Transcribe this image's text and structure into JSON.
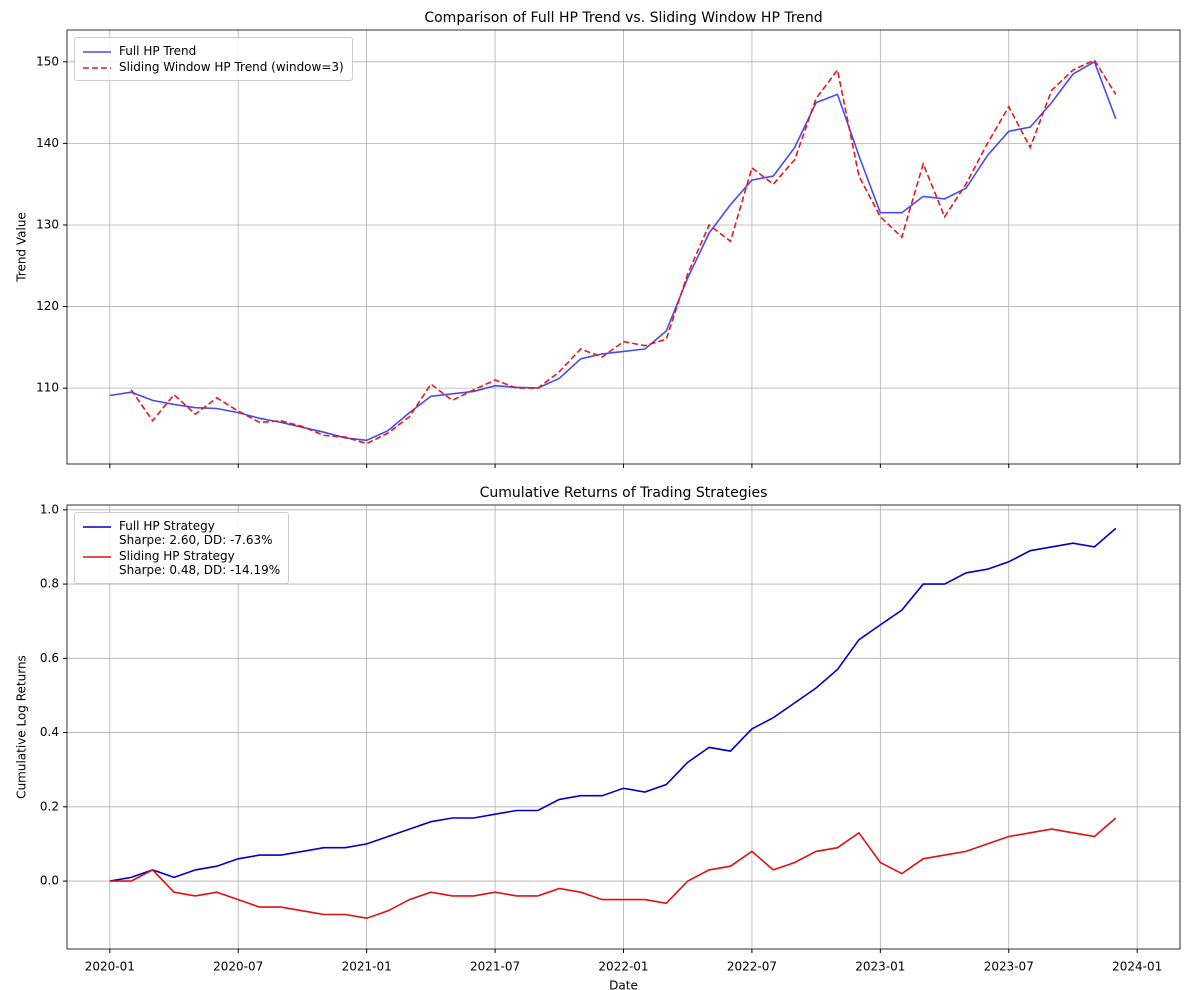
{
  "chart_data": [
    {
      "type": "line",
      "title": "Comparison of Full HP Trend vs. Sliding Window HP Trend",
      "y_label": "Trend Value",
      "x": [
        "2020-01",
        "2020-02",
        "2020-03",
        "2020-04",
        "2020-05",
        "2020-06",
        "2020-07",
        "2020-08",
        "2020-09",
        "2020-10",
        "2020-11",
        "2020-12",
        "2021-01",
        "2021-02",
        "2021-03",
        "2021-04",
        "2021-05",
        "2021-06",
        "2021-07",
        "2021-08",
        "2021-09",
        "2021-10",
        "2021-11",
        "2021-12",
        "2022-01",
        "2022-02",
        "2022-03",
        "2022-04",
        "2022-05",
        "2022-06",
        "2022-07",
        "2022-08",
        "2022-09",
        "2022-10",
        "2022-11",
        "2022-12",
        "2023-01",
        "2023-02",
        "2023-03",
        "2023-04",
        "2023-05",
        "2023-06",
        "2023-07",
        "2023-08",
        "2023-09",
        "2023-10",
        "2023-11",
        "2023-12"
      ],
      "series": [
        {
          "name": "Full HP Trend",
          "color": "#4a4aee",
          "dashed": false,
          "values": [
            109.1,
            109.5,
            108.5,
            108.0,
            107.6,
            107.5,
            107.0,
            106.3,
            105.8,
            105.2,
            104.6,
            103.9,
            103.6,
            104.8,
            107.0,
            109.0,
            109.3,
            109.6,
            110.3,
            110.1,
            110.0,
            111.2,
            113.6,
            114.2,
            114.5,
            114.8,
            117.0,
            123.5,
            129.0,
            132.5,
            135.5,
            136.0,
            139.5,
            145.0,
            146.0,
            138.5,
            131.5,
            131.5,
            133.5,
            133.2,
            134.5,
            138.5,
            141.5,
            142.0,
            145.0,
            148.5,
            150.0,
            143.0
          ]
        },
        {
          "name": "Sliding Window HP Trend (window=3)",
          "color": "#e31a1c",
          "dashed": true,
          "values": [
            null,
            109.8,
            106.0,
            109.2,
            106.8,
            108.8,
            107.2,
            105.8,
            106.0,
            105.3,
            104.2,
            104.0,
            103.2,
            104.5,
            106.5,
            110.5,
            108.5,
            109.8,
            111.0,
            110.0,
            110.0,
            112.0,
            114.8,
            113.8,
            115.7,
            115.2,
            116.0,
            124.0,
            130.0,
            128.0,
            137.0,
            135.0,
            138.0,
            145.5,
            149.0,
            136.0,
            131.0,
            128.5,
            137.5,
            131.0,
            135.0,
            140.0,
            144.5,
            139.5,
            146.5,
            149.0,
            150.2,
            146.0
          ]
        }
      ],
      "xlim": [
        "2019-11",
        "2024-03"
      ],
      "ylim": [
        100.7,
        153.9
      ],
      "yticks": [
        110,
        120,
        130,
        140,
        150
      ],
      "grid": true,
      "legend": "upper left"
    },
    {
      "type": "line",
      "title": "Cumulative Returns of Trading Strategies",
      "x_label": "Date",
      "y_label": "Cumulative Log Returns",
      "x": [
        "2020-01",
        "2020-02",
        "2020-03",
        "2020-04",
        "2020-05",
        "2020-06",
        "2020-07",
        "2020-08",
        "2020-09",
        "2020-10",
        "2020-11",
        "2020-12",
        "2021-01",
        "2021-02",
        "2021-03",
        "2021-04",
        "2021-05",
        "2021-06",
        "2021-07",
        "2021-08",
        "2021-09",
        "2021-10",
        "2021-11",
        "2021-12",
        "2022-01",
        "2022-02",
        "2022-03",
        "2022-04",
        "2022-05",
        "2022-06",
        "2022-07",
        "2022-08",
        "2022-09",
        "2022-10",
        "2022-11",
        "2022-12",
        "2023-01",
        "2023-02",
        "2023-03",
        "2023-04",
        "2023-05",
        "2023-06",
        "2023-07",
        "2023-08",
        "2023-09",
        "2023-10",
        "2023-11",
        "2023-12"
      ],
      "series": [
        {
          "name": "Full HP Strategy\nSharpe: 2.60, DD: -7.63%",
          "color": "#0000cc",
          "dashed": false,
          "values": [
            0.0,
            0.01,
            0.03,
            0.01,
            0.03,
            0.04,
            0.06,
            0.07,
            0.07,
            0.08,
            0.09,
            0.09,
            0.1,
            0.12,
            0.14,
            0.16,
            0.17,
            0.17,
            0.18,
            0.19,
            0.19,
            0.22,
            0.23,
            0.23,
            0.25,
            0.24,
            0.26,
            0.32,
            0.36,
            0.35,
            0.41,
            0.44,
            0.48,
            0.52,
            0.57,
            0.65,
            0.69,
            0.73,
            0.8,
            0.8,
            0.83,
            0.84,
            0.86,
            0.89,
            0.9,
            0.91,
            0.9,
            0.95
          ]
        },
        {
          "name": "Sliding HP Strategy\nSharpe: 0.48, DD: -14.19%",
          "color": "#e01010",
          "dashed": false,
          "values": [
            0.0,
            0.0,
            0.03,
            -0.03,
            -0.04,
            -0.03,
            -0.05,
            -0.07,
            -0.07,
            -0.08,
            -0.09,
            -0.09,
            -0.1,
            -0.08,
            -0.05,
            -0.03,
            -0.04,
            -0.04,
            -0.03,
            -0.04,
            -0.04,
            -0.02,
            -0.03,
            -0.05,
            -0.05,
            -0.05,
            -0.06,
            0.0,
            0.03,
            0.04,
            0.08,
            0.03,
            0.05,
            0.08,
            0.09,
            0.13,
            0.05,
            0.02,
            0.06,
            0.07,
            0.08,
            0.1,
            0.12,
            0.13,
            0.14,
            0.13,
            0.12,
            0.17
          ]
        }
      ],
      "xlim": [
        "2019-11",
        "2024-03"
      ],
      "xticks": [
        "2020-01",
        "2020-07",
        "2021-01",
        "2021-07",
        "2022-01",
        "2022-07",
        "2023-01",
        "2023-07",
        "2024-01"
      ],
      "ylim": [
        -0.183,
        1.013
      ],
      "yticks": [
        {
          "value": 0,
          "label": "0.0"
        },
        0.2,
        0.4,
        0.6,
        0.8,
        {
          "value": 1,
          "label": "1.0"
        }
      ],
      "grid": true,
      "legend": "upper left"
    }
  ]
}
